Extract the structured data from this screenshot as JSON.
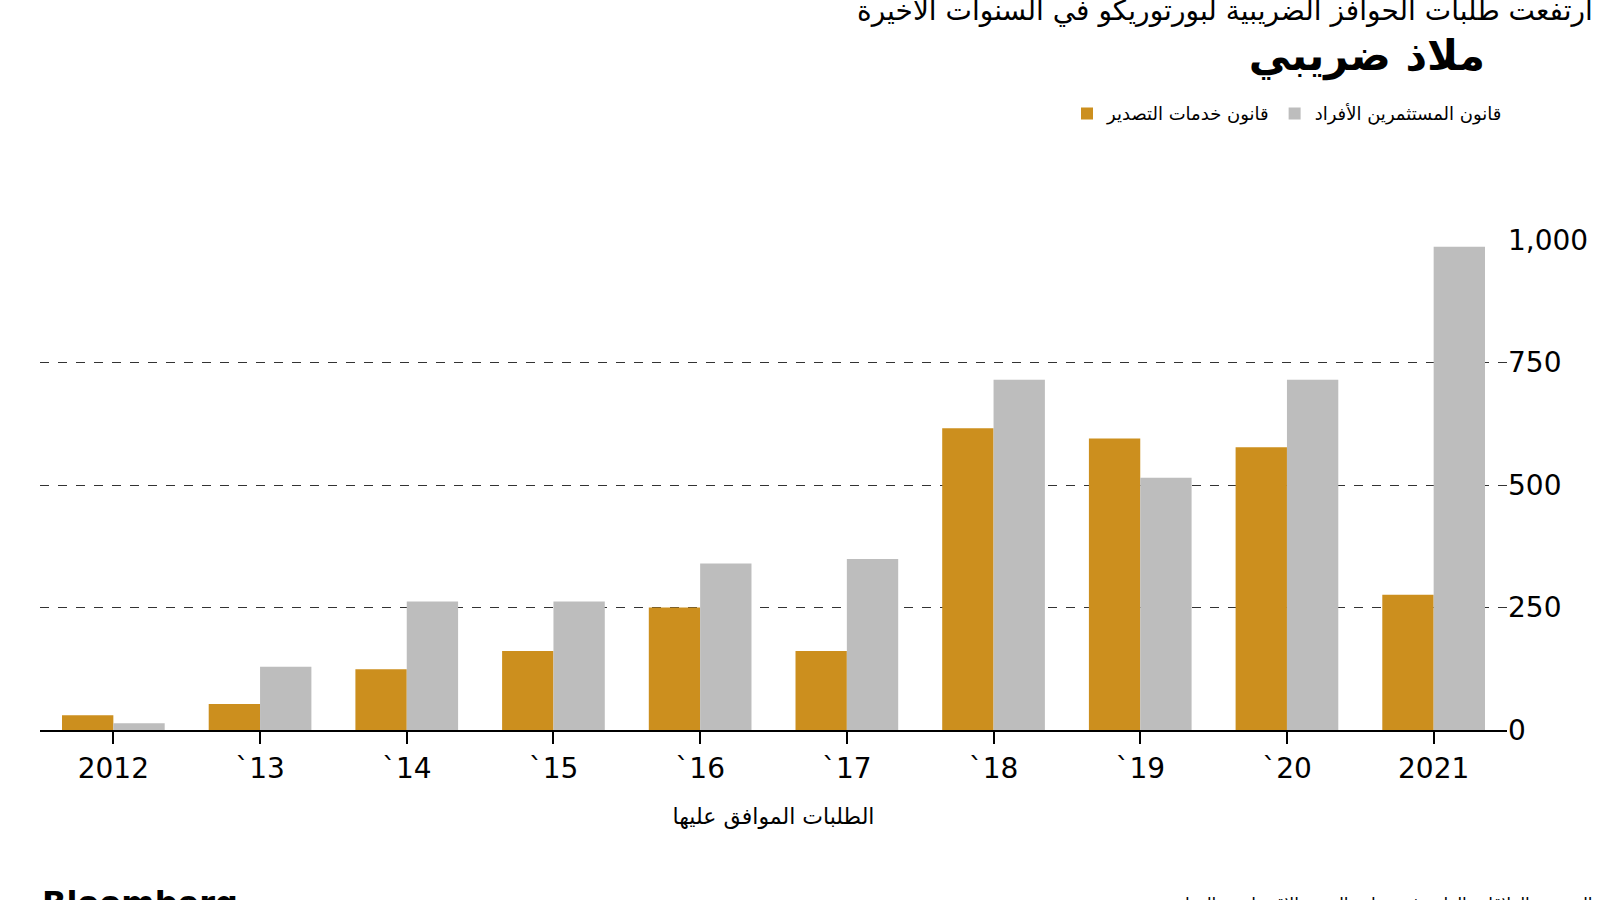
{
  "chart_data": {
    "type": "bar",
    "title": "ملاذ ضريبي",
    "subtitle": "ارتفعت طلبات الحوافز الضريبية لبورتوريكو في السنوات الأخيرة",
    "x_label": "الطلبات الموافق عليها",
    "source": "المصدر: العلاقات العامة في وزارة التنمية الاقتصادية والتجارة",
    "credit": "Bloomberg",
    "categories": [
      "2012",
      "`13",
      "`14",
      "`15",
      "`16",
      "`17",
      "`18",
      "`19",
      "`20",
      "2021"
    ],
    "series": [
      {
        "name": "قانون خدمات التصدير",
        "color": "#cc8f1e",
        "values": [
          30,
          53,
          124,
          161,
          250,
          161,
          616,
          595,
          577,
          276
        ]
      },
      {
        "name": "قانون المستثمرين الأفراد",
        "color": "#bdbdbd",
        "values": [
          14,
          129,
          262,
          262,
          340,
          349,
          715,
          515,
          715,
          986
        ]
      }
    ],
    "ylim": [
      0,
      1000
    ],
    "yticks": [
      0,
      250,
      500,
      750,
      {
        "value": 1000,
        "label": "1,000"
      }
    ],
    "grid": true,
    "legend": "top right"
  }
}
